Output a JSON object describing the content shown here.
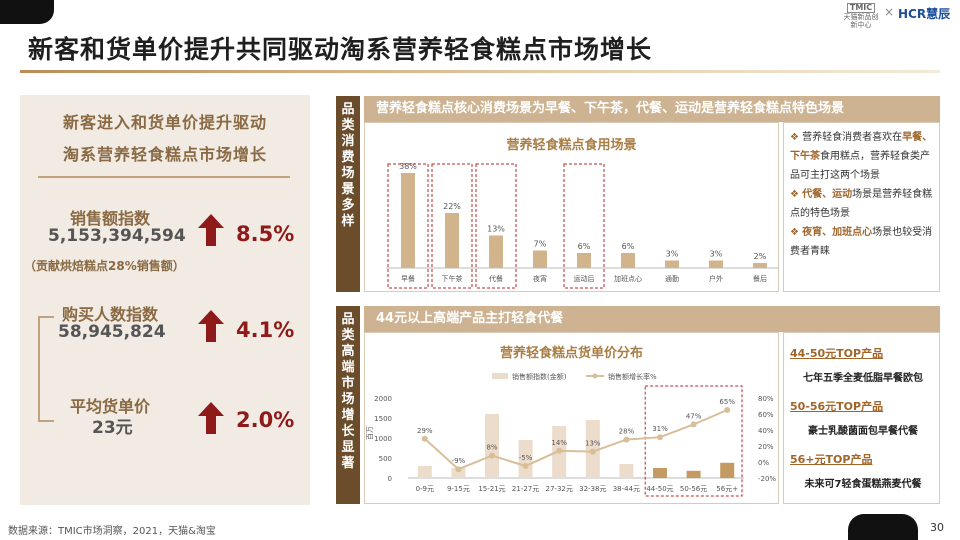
{
  "title": "新客和货单价提升共同驱动淘系营养轻食糕点市场增长",
  "brand": {
    "tmic": "天猫新品创新中心",
    "times": "×",
    "hcr": "HCR慧辰"
  },
  "left": {
    "heading_line1": "新客进入和货单价提升驱动",
    "heading_line2": "淘系营养轻食糕点市场增长",
    "metrics": [
      {
        "label": "销售额指数",
        "value": "5,153,394,594",
        "pct": "8.5%"
      },
      {
        "label": "购买人数指数",
        "value": "58,945,824",
        "pct": "4.1%"
      },
      {
        "label": "平均货单价",
        "value": "23元",
        "pct": "2.0%"
      }
    ],
    "note": "（贡献烘焙糕点28%销售额）"
  },
  "section1": {
    "side_label": "品类消费场景多样",
    "header": "营养轻食糕点核心消费场景为早餐、下午茶，代餐、运动是营养轻食糕点特色场景",
    "notes": [
      {
        "pre": "营养轻食消费者喜欢在",
        "bold": "早餐、下午茶",
        "post": "食用糕点，营养轻食类产品可主打这两个场景"
      },
      {
        "pre": "",
        "bold": "代餐、运动",
        "post": "场景是营养轻食糕点的特色场景"
      },
      {
        "pre": "",
        "bold": "夜宵、加班点心",
        "post": "场景也较受消费者青睐"
      }
    ]
  },
  "section2": {
    "side_label": "品类高端市场增长显著",
    "header": "44元以上高端产品主打轻食代餐",
    "tops": [
      {
        "label": "44-50元TOP产品",
        "product": "七年五季全麦低脂早餐欧包"
      },
      {
        "label": "50-56元TOP产品",
        "product": "豪士乳酸菌面包早餐代餐"
      },
      {
        "label": "56+元TOP产品",
        "product": "未来可7轻食蛋糕燕麦代餐"
      }
    ]
  },
  "chart_data": [
    {
      "type": "bar",
      "title": "营养轻食糕点食用场景",
      "categories": [
        "早餐",
        "下午茶",
        "代餐",
        "夜宵",
        "运动后",
        "加班点心",
        "通勤",
        "户外",
        "餐后"
      ],
      "values": [
        38,
        22,
        13,
        7,
        6,
        6,
        3,
        3,
        2
      ],
      "value_labels": [
        "38%",
        "22%",
        "13%",
        "7%",
        "6%",
        "6%",
        "3%",
        "3%",
        "2%"
      ],
      "highlighted": [
        "早餐",
        "下午茶",
        "代餐",
        "运动后"
      ],
      "colors": {
        "bar": "#d2b48c"
      }
    },
    {
      "type": "bar+line",
      "title": "营养轻食糕点货单价分布",
      "categories": [
        "0-9元",
        "9-15元",
        "15-21元",
        "21-27元",
        "27-32元",
        "32-38元",
        "38-44元",
        "44-50元",
        "50-56元",
        "56元+"
      ],
      "series": [
        {
          "name": "销售额指数(金额)",
          "type": "bar",
          "axis": "left",
          "values": [
            300,
            250,
            1600,
            950,
            1300,
            1450,
            350,
            250,
            180,
            380
          ]
        },
        {
          "name": "销售额增长率%",
          "type": "line",
          "axis": "right",
          "values": [
            29,
            -9,
            8,
            -5,
            14,
            13,
            28,
            31,
            47,
            65
          ],
          "labels": [
            "29%",
            "-9%",
            "8%",
            "-5%",
            "14%",
            "13%",
            "28%",
            "31%",
            "47%",
            "65%"
          ]
        }
      ],
      "ylabel_left": "百万",
      "ylim_left": [
        0,
        2000
      ],
      "yticks_left": [
        "0",
        "500",
        "1000",
        "1500",
        "2000"
      ],
      "ylim_right": [
        -20,
        80
      ],
      "yticks_right": [
        "-20%",
        "0%",
        "20%",
        "40%",
        "60%",
        "80%"
      ],
      "highlighted": [
        "44-50元",
        "50-56元",
        "56元+"
      ],
      "colors": {
        "bar": "#ecdccb",
        "bar_highlight": "#c39a62",
        "line": "#d8be99"
      }
    }
  ],
  "footer": "数据来源：TMIC市场洞察，2021，天猫&淘宝",
  "page_number": "30"
}
